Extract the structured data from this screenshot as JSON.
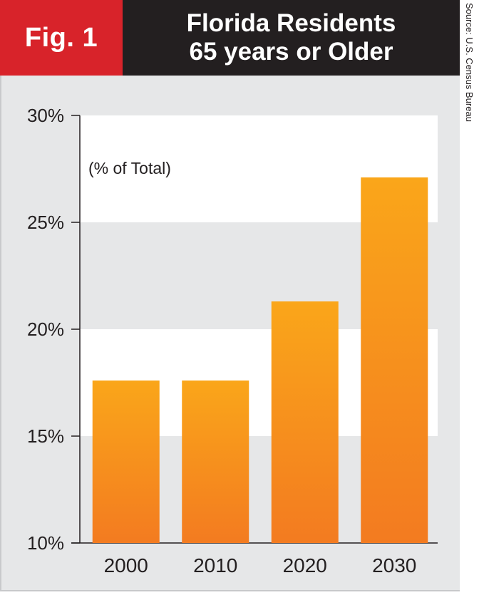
{
  "badge": {
    "label": "Fig. 1"
  },
  "title": {
    "line1": "Florida Residents",
    "line2": "65 years or Older"
  },
  "source": "Source: U.S. Census Bureau",
  "chart_data": {
    "type": "bar",
    "title": "Florida Residents 65 years or Older",
    "ylabel": "(% of Total)",
    "xlabel": "",
    "categories": [
      "2000",
      "2010",
      "2020",
      "2030"
    ],
    "values": [
      17.6,
      17.6,
      21.3,
      27.1
    ],
    "ylim": [
      10,
      30
    ],
    "yticks": [
      10,
      15,
      20,
      25,
      30
    ],
    "ytick_labels": [
      "10%",
      "15%",
      "20%",
      "25%",
      "30%"
    ],
    "grid": "alternating horizontal bands",
    "colors": {
      "bar_top": "#faa61a",
      "bar_bottom": "#f37b20",
      "band_light": "#ffffff",
      "band_dark": "#e6e7e8",
      "badge": "#d8232a",
      "title_bg": "#231f20"
    }
  }
}
